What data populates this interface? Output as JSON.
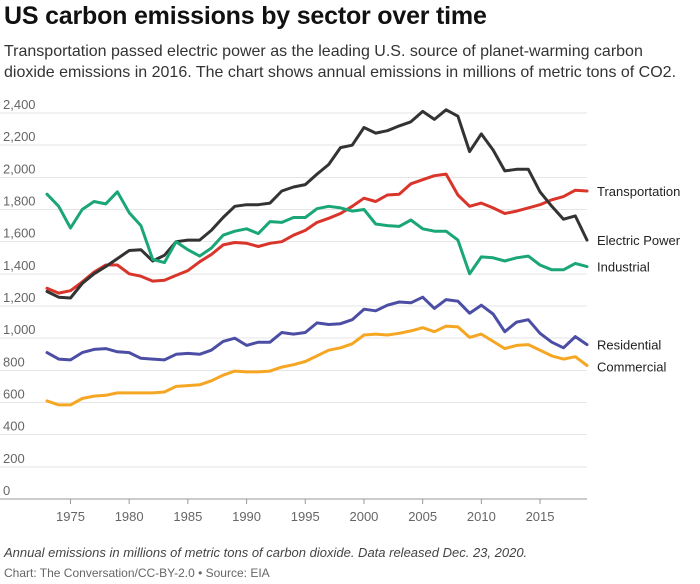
{
  "title": "US carbon emissions by sector over time",
  "subtitle": "Transportation passed electric power as the leading U.S. source of planet-warming carbon dioxide emissions in 2016. The chart shows annual emissions in millions of metric tons of CO2.",
  "note": "Annual emissions in millions of metric tons of carbon dioxide. Data released Dec. 23, 2020.",
  "source": "Chart: The Conversation/CC-BY-2.0 • Source: EIA",
  "chart_data": {
    "type": "line",
    "title": "US carbon emissions by sector over time",
    "xlabel": "",
    "ylabel": "",
    "xlim": [
      1973,
      2019
    ],
    "ylim": [
      0,
      2400
    ],
    "x_ticks": [
      1975,
      1980,
      1985,
      1990,
      1995,
      2000,
      2005,
      2010,
      2015
    ],
    "y_ticks": [
      0,
      200,
      400,
      600,
      800,
      1000,
      1200,
      1400,
      1600,
      1800,
      2000,
      2200,
      2400
    ],
    "y_tick_labels": [
      "0",
      "200",
      "400",
      "600",
      "800",
      "1,000",
      "1,200",
      "1,400",
      "1,600",
      "1,800",
      "2,000",
      "2,200",
      "2,400"
    ],
    "grid": "horizontal",
    "legend": "direct labels at right end of lines",
    "x": [
      1973,
      1974,
      1975,
      1976,
      1977,
      1978,
      1979,
      1980,
      1981,
      1982,
      1983,
      1984,
      1985,
      1986,
      1987,
      1988,
      1989,
      1990,
      1991,
      1992,
      1993,
      1994,
      1995,
      1996,
      1997,
      1998,
      1999,
      2000,
      2001,
      2002,
      2003,
      2004,
      2005,
      2006,
      2007,
      2008,
      2009,
      2010,
      2011,
      2012,
      2013,
      2014,
      2015,
      2016,
      2017,
      2018,
      2019
    ],
    "series": [
      {
        "name": "Transportation",
        "color": "#d9352b",
        "values": [
          1310,
          1280,
          1295,
          1350,
          1410,
          1455,
          1455,
          1400,
          1385,
          1355,
          1360,
          1390,
          1420,
          1475,
          1520,
          1580,
          1595,
          1590,
          1570,
          1590,
          1600,
          1640,
          1670,
          1720,
          1745,
          1775,
          1820,
          1870,
          1850,
          1890,
          1895,
          1960,
          1985,
          2010,
          2020,
          1890,
          1820,
          1840,
          1810,
          1775,
          1790,
          1810,
          1830,
          1860,
          1880,
          1920,
          1915
        ]
      },
      {
        "name": "Electric Power",
        "color": "#333333",
        "values": [
          1290,
          1255,
          1250,
          1340,
          1400,
          1445,
          1495,
          1545,
          1550,
          1480,
          1515,
          1600,
          1610,
          1610,
          1670,
          1750,
          1820,
          1830,
          1830,
          1840,
          1915,
          1940,
          1955,
          2020,
          2080,
          2185,
          2200,
          2310,
          2275,
          2290,
          2320,
          2345,
          2410,
          2360,
          2420,
          2380,
          2160,
          2270,
          2170,
          2040,
          2050,
          2050,
          1910,
          1820,
          1740,
          1760,
          1610
        ]
      },
      {
        "name": "Industrial",
        "color": "#1aa676",
        "values": [
          1895,
          1820,
          1685,
          1800,
          1850,
          1835,
          1910,
          1780,
          1700,
          1490,
          1470,
          1600,
          1550,
          1510,
          1560,
          1640,
          1665,
          1680,
          1650,
          1725,
          1720,
          1750,
          1750,
          1805,
          1820,
          1810,
          1790,
          1800,
          1710,
          1700,
          1695,
          1735,
          1680,
          1665,
          1665,
          1610,
          1400,
          1505,
          1500,
          1480,
          1500,
          1510,
          1455,
          1425,
          1425,
          1465,
          1445
        ]
      },
      {
        "name": "Residential",
        "color": "#4c4ea5",
        "values": [
          910,
          870,
          865,
          910,
          930,
          935,
          915,
          910,
          875,
          870,
          865,
          900,
          905,
          900,
          925,
          980,
          1000,
          955,
          975,
          975,
          1035,
          1025,
          1035,
          1095,
          1085,
          1090,
          1115,
          1180,
          1170,
          1205,
          1225,
          1220,
          1255,
          1185,
          1240,
          1230,
          1155,
          1205,
          1150,
          1040,
          1100,
          1115,
          1030,
          975,
          940,
          1010,
          960
        ]
      },
      {
        "name": "Commercial",
        "color": "#f5a623",
        "values": [
          610,
          585,
          585,
          625,
          640,
          645,
          660,
          660,
          660,
          660,
          665,
          700,
          705,
          710,
          735,
          770,
          795,
          790,
          790,
          795,
          820,
          835,
          855,
          890,
          925,
          940,
          965,
          1020,
          1025,
          1020,
          1030,
          1045,
          1065,
          1040,
          1075,
          1070,
          1005,
          1025,
          980,
          935,
          955,
          960,
          925,
          890,
          870,
          885,
          830
        ]
      }
    ]
  }
}
